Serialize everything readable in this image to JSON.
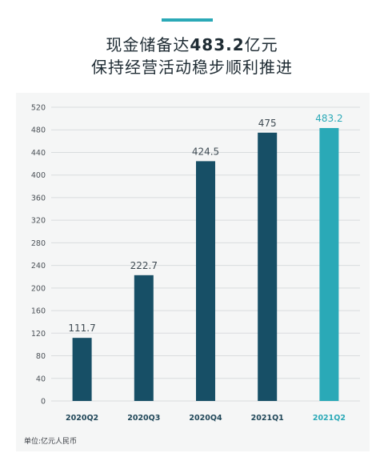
{
  "header": {
    "title_line1_prefix": "现金储备达",
    "title_line1_value": "483.2",
    "title_line1_suffix": "亿元",
    "title_line2": "保持经营活动稳步顺利推进"
  },
  "colors": {
    "bar_primary": "#174f66",
    "bar_highlight": "#2aa9b7",
    "accent": "#2aa9b7"
  },
  "chart_data": {
    "type": "bar",
    "categories": [
      "2020Q2",
      "2020Q3",
      "2020Q4",
      "2021Q1",
      "2021Q2"
    ],
    "values": [
      111.7,
      222.7,
      424.5,
      475,
      483.2
    ],
    "value_labels": [
      "111.7",
      "222.7",
      "424.5",
      "475",
      "483.2"
    ],
    "highlight_index": 4,
    "ylim": [
      0,
      520
    ],
    "yticks": [
      0,
      40,
      80,
      120,
      160,
      200,
      240,
      280,
      320,
      360,
      400,
      440,
      480,
      520
    ],
    "grid": true,
    "title": "现金储备达483.2亿元 保持经营活动稳步顺利推进",
    "xlabel": "",
    "ylabel": ""
  },
  "footer": {
    "unit_label": "单位:亿元人民币"
  }
}
